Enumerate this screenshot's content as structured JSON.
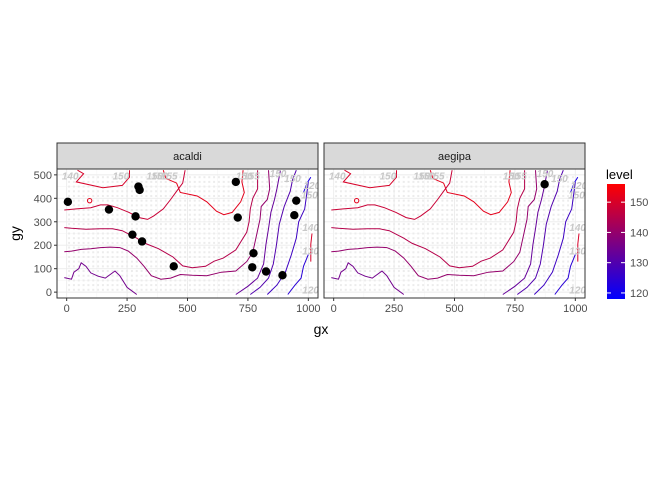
{
  "chart_data": {
    "type": "scatter",
    "facets": [
      {
        "name": "acaldi",
        "points": [
          {
            "x": 5,
            "y": 385
          },
          {
            "x": 175,
            "y": 352
          },
          {
            "x": 297,
            "y": 450
          },
          {
            "x": 302,
            "y": 436
          },
          {
            "x": 285,
            "y": 323
          },
          {
            "x": 272,
            "y": 245
          },
          {
            "x": 312,
            "y": 216
          },
          {
            "x": 443,
            "y": 110
          },
          {
            "x": 700,
            "y": 470
          },
          {
            "x": 708,
            "y": 318
          },
          {
            "x": 773,
            "y": 166
          },
          {
            "x": 768,
            "y": 106
          },
          {
            "x": 825,
            "y": 88
          },
          {
            "x": 893,
            "y": 72
          },
          {
            "x": 950,
            "y": 390
          },
          {
            "x": 942,
            "y": 328
          }
        ]
      },
      {
        "name": "aegipa",
        "points": [
          {
            "x": 873,
            "y": 460
          }
        ]
      }
    ],
    "xlabel": "gx",
    "ylabel": "gy",
    "xlim": [
      -40,
      1040
    ],
    "ylim": [
      -25,
      525
    ],
    "xticks": [
      0,
      250,
      500,
      750,
      1000
    ],
    "yticks": [
      0,
      100,
      200,
      300,
      400,
      500
    ],
    "legend": {
      "title": "level",
      "min": 118,
      "max": 156,
      "ticks": [
        120,
        130,
        140,
        150
      ],
      "low_color": "#0000ff",
      "high_color": "#ff0000",
      "placement": "right"
    },
    "contour_labels": [
      "140",
      "150",
      "150",
      "155",
      "150",
      "150",
      "155",
      "150",
      "150",
      "150",
      "140",
      "130",
      "120",
      "120"
    ],
    "contours": [
      {
        "level": 150,
        "points": [
          [
            45,
            520
          ],
          [
            70,
            505
          ],
          [
            40,
            470
          ],
          [
            150,
            445
          ],
          [
            230,
            455
          ],
          [
            260,
            490
          ],
          [
            260,
            520
          ]
        ]
      },
      {
        "level": 152,
        "points": [
          [
            400,
            520
          ],
          [
            410,
            485
          ],
          [
            455,
            465
          ],
          [
            470,
            425
          ],
          [
            540,
            410
          ],
          [
            580,
            385
          ],
          [
            620,
            345
          ],
          [
            650,
            330
          ],
          [
            685,
            340
          ],
          [
            720,
            385
          ],
          [
            735,
            425
          ],
          [
            725,
            470
          ],
          [
            730,
            520
          ]
        ]
      },
      {
        "level": 148,
        "points": [
          [
            -10,
            350
          ],
          [
            40,
            355
          ],
          [
            100,
            360
          ],
          [
            140,
            372
          ],
          [
            170,
            372
          ],
          [
            210,
            360
          ],
          [
            258,
            340
          ],
          [
            300,
            318
          ],
          [
            335,
            310
          ],
          [
            360,
            325
          ],
          [
            400,
            355
          ],
          [
            430,
            395
          ],
          [
            455,
            430
          ],
          [
            480,
            465
          ],
          [
            490,
            520
          ]
        ]
      },
      {
        "level": 145,
        "points": [
          [
            -10,
            275
          ],
          [
            20,
            272
          ],
          [
            80,
            268
          ],
          [
            140,
            270
          ],
          [
            190,
            270
          ],
          [
            230,
            262
          ],
          [
            290,
            230
          ],
          [
            325,
            208
          ],
          [
            380,
            185
          ],
          [
            440,
            150
          ],
          [
            480,
            112
          ],
          [
            520,
            104
          ],
          [
            575,
            110
          ],
          [
            610,
            132
          ],
          [
            648,
            145
          ],
          [
            700,
            180
          ],
          [
            745,
            255
          ],
          [
            755,
            300
          ],
          [
            760,
            355
          ],
          [
            770,
            400
          ],
          [
            790,
            440
          ],
          [
            790,
            520
          ]
        ]
      },
      {
        "level": 140,
        "points": [
          [
            -10,
            172
          ],
          [
            20,
            175
          ],
          [
            60,
            182
          ],
          [
            100,
            185
          ],
          [
            140,
            190
          ],
          [
            180,
            192
          ],
          [
            220,
            190
          ],
          [
            255,
            175
          ],
          [
            290,
            145
          ],
          [
            320,
            110
          ],
          [
            350,
            70
          ],
          [
            390,
            55
          ],
          [
            430,
            60
          ],
          [
            470,
            75
          ],
          [
            520,
            72
          ],
          [
            580,
            70
          ],
          [
            640,
            85
          ],
          [
            700,
            90
          ],
          [
            745,
            130
          ],
          [
            770,
            170
          ],
          [
            785,
            240
          ],
          [
            800,
            310
          ],
          [
            805,
            365
          ],
          [
            830,
            395
          ],
          [
            840,
            440
          ],
          [
            835,
            520
          ]
        ]
      },
      {
        "level": 135,
        "points": [
          [
            -10,
            62
          ],
          [
            20,
            55
          ],
          [
            30,
            85
          ],
          [
            50,
            100
          ],
          [
            60,
            125
          ],
          [
            80,
            110
          ],
          [
            100,
            82
          ],
          [
            130,
            68
          ],
          [
            160,
            60
          ],
          [
            200,
            90
          ],
          [
            220,
            70
          ],
          [
            250,
            20
          ],
          [
            290,
            -10
          ]
        ]
      },
      {
        "level": 133,
        "points": [
          [
            700,
            -10
          ],
          [
            750,
            25
          ],
          [
            790,
            60
          ],
          [
            815,
            120
          ],
          [
            825,
            205
          ],
          [
            835,
            270
          ],
          [
            845,
            340
          ],
          [
            860,
            395
          ],
          [
            870,
            440
          ],
          [
            885,
            520
          ]
        ]
      },
      {
        "level": 130,
        "points": [
          [
            760,
            -10
          ],
          [
            800,
            20
          ],
          [
            835,
            60
          ],
          [
            855,
            120
          ],
          [
            868,
            200
          ],
          [
            880,
            290
          ],
          [
            900,
            365
          ],
          [
            925,
            430
          ],
          [
            935,
            480
          ],
          [
            950,
            520
          ]
        ]
      },
      {
        "level": 127,
        "points": [
          [
            830,
            -10
          ],
          [
            870,
            30
          ],
          [
            905,
            85
          ],
          [
            930,
            160
          ],
          [
            950,
            230
          ],
          [
            960,
            300
          ],
          [
            985,
            355
          ],
          [
            995,
            430
          ],
          [
            1000,
            470
          ]
        ]
      },
      {
        "level": 124,
        "points": [
          [
            915,
            -10
          ],
          [
            945,
            30
          ],
          [
            970,
            60
          ],
          [
            980,
            110
          ],
          [
            1000,
            160
          ]
        ]
      },
      {
        "level": 122,
        "points": [
          [
            980,
            425
          ],
          [
            995,
            465
          ],
          [
            1010,
            490
          ]
        ]
      },
      {
        "level": 150,
        "points": [
          [
            1015,
            250
          ],
          [
            1010,
            205
          ],
          [
            1010,
            130
          ]
        ]
      }
    ],
    "ring": {
      "level": 152,
      "x": 95,
      "y": 390,
      "r": 10
    }
  }
}
